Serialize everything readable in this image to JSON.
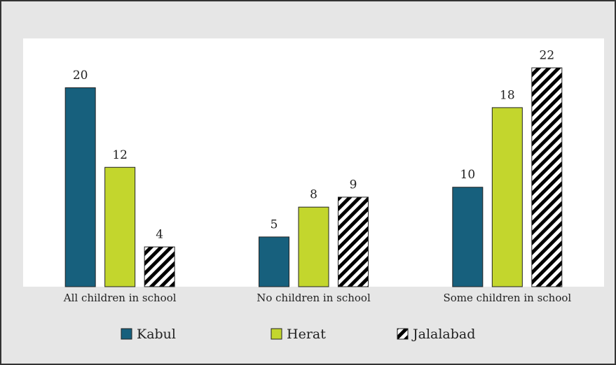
{
  "chart_data": {
    "type": "bar",
    "categories": [
      "All children in school",
      "No children in school",
      "Some children in school"
    ],
    "series": [
      {
        "name": "Kabul",
        "color": "#17607d",
        "values": [
          20,
          5,
          10
        ]
      },
      {
        "name": "Herat",
        "color": "#c3d62d",
        "values": [
          12,
          8,
          18
        ]
      },
      {
        "name": "Jalalabad",
        "color": "#000000",
        "hatch": true,
        "values": [
          4,
          9,
          22
        ]
      }
    ],
    "legend": "bottom"
  }
}
